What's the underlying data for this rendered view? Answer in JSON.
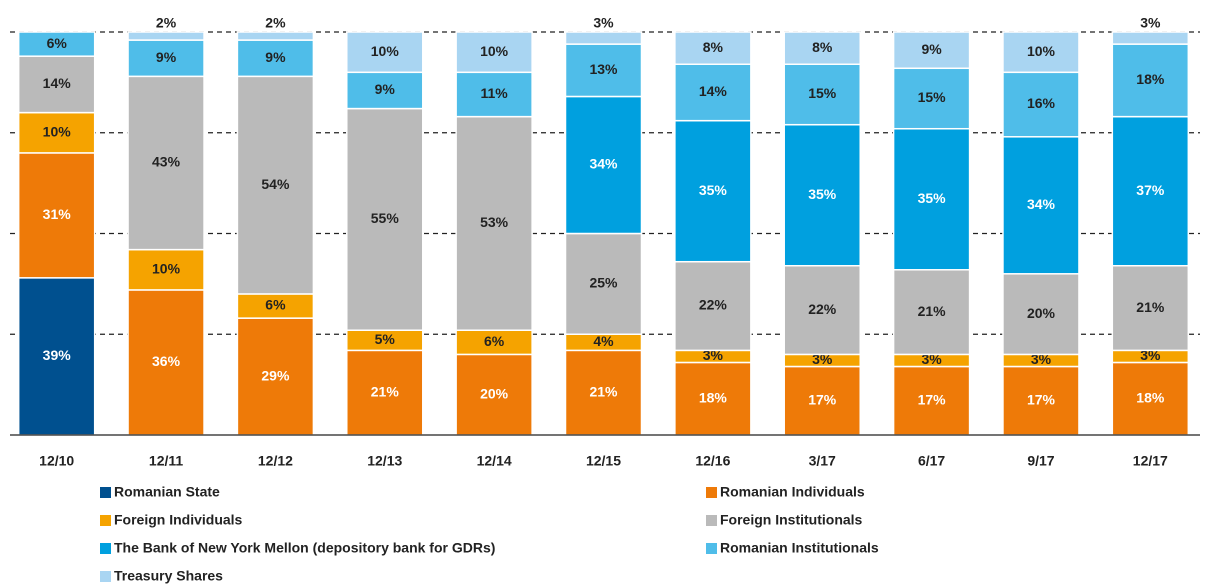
{
  "chart_data": {
    "type": "stacked-bar",
    "categories": [
      "12/10",
      "12/11",
      "12/12",
      "12/13",
      "12/14",
      "12/15",
      "12/16",
      "3/17",
      "6/17",
      "9/17",
      "12/17"
    ],
    "ylim": [
      0,
      100
    ],
    "yticks": [
      25,
      50,
      75,
      100
    ],
    "grid": true,
    "series": [
      {
        "name": "Romanian State",
        "color": "#00508f",
        "values": [
          39,
          null,
          null,
          null,
          null,
          null,
          null,
          null,
          null,
          null,
          null
        ],
        "value_labels": [
          "39%",
          null,
          null,
          null,
          null,
          null,
          null,
          null,
          null,
          null,
          null
        ]
      },
      {
        "name": "Romanian Individuals",
        "color": "#ee7a08",
        "values": [
          31,
          36,
          29,
          21,
          20,
          21,
          18,
          17,
          17,
          17,
          18
        ],
        "value_labels": [
          "31%",
          "36%",
          "29%",
          "21%",
          "20%",
          "21%",
          "18%",
          "17%",
          "17%",
          "17%",
          "18%"
        ]
      },
      {
        "name": "Foreign Individuals",
        "color": "#f5a300",
        "values": [
          10,
          10,
          6,
          5,
          6,
          4,
          3,
          3,
          3,
          3,
          3
        ],
        "value_labels": [
          "10%",
          "10%",
          "6%",
          "5%",
          "6%",
          "4%",
          "3%",
          "3%",
          "3%",
          "3%",
          "3%"
        ]
      },
      {
        "name": "Foreign Institutionals",
        "color": "#bababa",
        "values": [
          14,
          43,
          54,
          55,
          53,
          25,
          22,
          22,
          21,
          20,
          21
        ],
        "value_labels": [
          "14%",
          "43%",
          "54%",
          "55%",
          "53%",
          "25%",
          "22%",
          "22%",
          "21%",
          "20%",
          "21%"
        ]
      },
      {
        "name": "The Bank of New York Mellon (depository bank for GDRs)",
        "color": "#00a0df",
        "values": [
          null,
          null,
          null,
          null,
          null,
          34,
          35,
          35,
          35,
          34,
          37
        ],
        "value_labels": [
          null,
          null,
          null,
          null,
          null,
          "34%",
          "35%",
          "35%",
          "35%",
          "34%",
          "37%"
        ]
      },
      {
        "name": "Romanian Institutionals",
        "color": "#4fbde9",
        "values": [
          6,
          9,
          9,
          9,
          11,
          13,
          14,
          15,
          15,
          16,
          18
        ],
        "value_labels": [
          "6%",
          "9%",
          "9%",
          "9%",
          "11%",
          "13%",
          "14%",
          "15%",
          "15%",
          "16%",
          "18%"
        ]
      },
      {
        "name": "Treasury Shares",
        "color": "#a9d5f2",
        "values": [
          null,
          2,
          2,
          10,
          10,
          3,
          8,
          8,
          9,
          10,
          3
        ],
        "value_labels": [
          null,
          "2%",
          "2%",
          "10%",
          "10%",
          "3%",
          "8%",
          "8%",
          "9%",
          "10%",
          "3%"
        ]
      }
    ]
  }
}
